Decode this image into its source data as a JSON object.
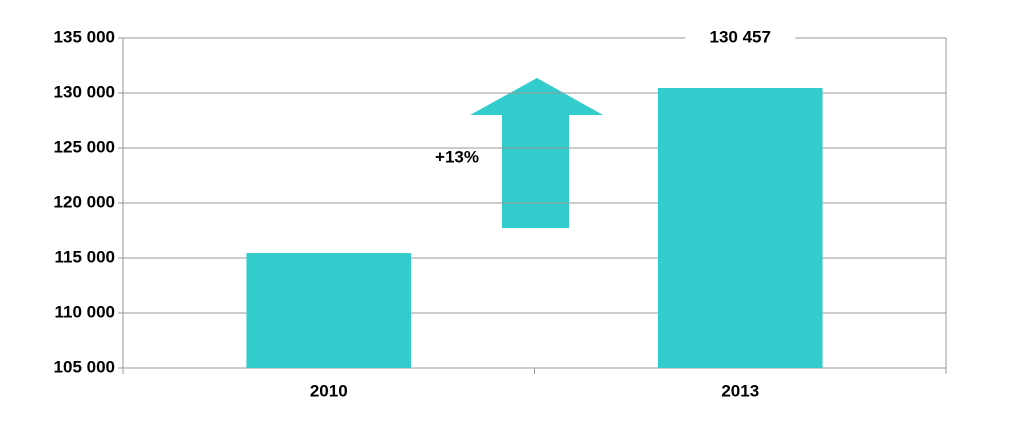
{
  "chart_data": {
    "type": "bar",
    "categories": [
      "2010",
      "2013"
    ],
    "values": [
      115448,
      130457
    ],
    "value_labels": [
      null,
      "130 457"
    ],
    "color": "#33cccc",
    "annotation": "+13%",
    "ylim": [
      105000,
      135000
    ],
    "yticks": [
      {
        "value": 105000,
        "label": "105 000"
      },
      {
        "value": 110000,
        "label": "110 000"
      },
      {
        "value": 115000,
        "label": "115 000"
      },
      {
        "value": 120000,
        "label": "120 000"
      },
      {
        "value": 125000,
        "label": "125 000"
      },
      {
        "value": 130000,
        "label": "130 000"
      },
      {
        "value": 135000,
        "label": "135 000"
      }
    ],
    "grid": true
  }
}
